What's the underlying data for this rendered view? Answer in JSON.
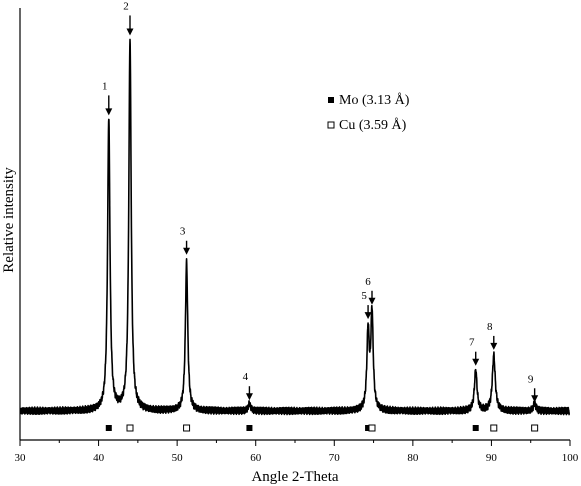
{
  "chart_data": {
    "type": "line",
    "title": "",
    "xlabel": "Angle 2-Theta",
    "ylabel": "Relative intensity",
    "xlim": [
      30,
      100
    ],
    "x_ticks": [
      30,
      40,
      50,
      60,
      70,
      80,
      90,
      100
    ],
    "ylim": [
      0,
      1.0
    ],
    "grid": false,
    "legend": {
      "position": "top-right",
      "entries": [
        {
          "marker": "filled-square",
          "label": "Mo (3.13 Å)"
        },
        {
          "marker": "open-square",
          "label": "Cu (3.59 Å)"
        }
      ]
    },
    "peaks": [
      {
        "label": "1",
        "x": 41.3,
        "y": 0.79
      },
      {
        "label": "2",
        "x": 44.0,
        "y": 1.0
      },
      {
        "label": "3",
        "x": 51.2,
        "y": 0.4
      },
      {
        "label": "4",
        "x": 59.2,
        "y": 0.02
      },
      {
        "label": "5",
        "x": 74.3,
        "y": 0.21
      },
      {
        "label": "6",
        "x": 74.8,
        "y": 0.26
      },
      {
        "label": "7",
        "x": 88.0,
        "y": 0.11
      },
      {
        "label": "8",
        "x": 90.3,
        "y": 0.15
      },
      {
        "label": "9",
        "x": 95.5,
        "y": 0.02
      }
    ],
    "markers": {
      "Mo": [
        41.3,
        59.2,
        74.3,
        88.0
      ],
      "Cu": [
        44.0,
        51.2,
        74.8,
        90.3,
        95.5
      ]
    }
  }
}
